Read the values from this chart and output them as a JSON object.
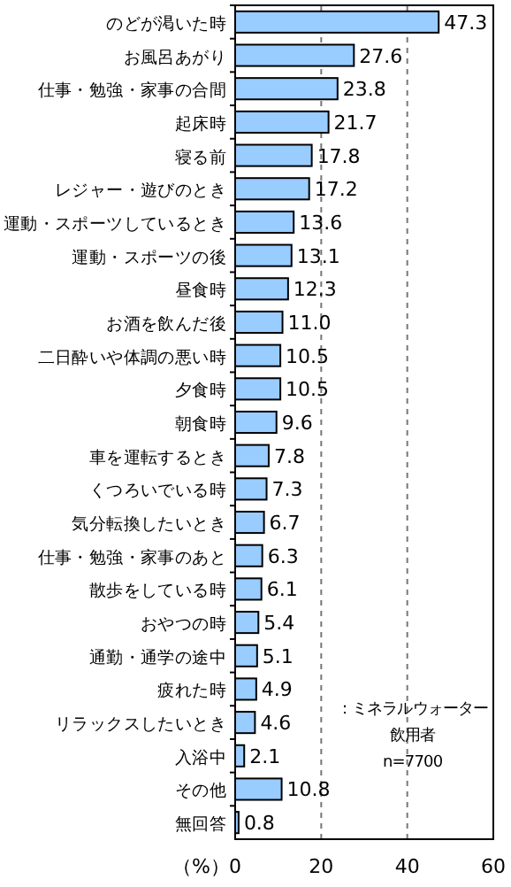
{
  "chart_data": {
    "type": "bar",
    "orientation": "horizontal",
    "xlabel": "（%）",
    "categories": [
      "のどが渇いた時",
      "お風呂あがり",
      "仕事・勉強・家事の合間",
      "起床時",
      "寝る前",
      "レジャー・遊びのとき",
      "運動・スポーツしているとき",
      "運動・スポーツの後",
      "昼食時",
      "お酒を飲んだ後",
      "二日酔いや体調の悪い時",
      "夕食時",
      "朝食時",
      "車を運転するとき",
      "くつろいでいる時",
      "気分転換したいとき",
      "仕事・勉強・家事のあと",
      "散歩をしている時",
      "おやつの時",
      "通勤・通学の途中",
      "疲れた時",
      "リラックスしたいとき",
      "入浴中",
      "その他",
      "無回答"
    ],
    "values": [
      47.3,
      27.6,
      23.8,
      21.7,
      17.8,
      17.2,
      13.6,
      13.1,
      12.3,
      11.0,
      10.5,
      10.5,
      9.6,
      7.8,
      7.3,
      6.7,
      6.3,
      6.1,
      5.4,
      5.1,
      4.9,
      4.6,
      2.1,
      10.8,
      0.8
    ],
    "value_labels": [
      "47.3",
      "27.6",
      "23.8",
      "21.7",
      "17.8",
      "17.2",
      "13.6",
      "13.1",
      "12.3",
      "11.0",
      "10.5",
      "10.5",
      "9.6",
      "7.8",
      "7.3",
      "6.7",
      "6.3",
      "6.1",
      "5.4",
      "5.1",
      "4.9",
      "4.6",
      "2.1",
      "10.8",
      "0.8"
    ],
    "color": "#99ccff",
    "xlim": [
      0,
      60
    ],
    "xticks": [
      0,
      20,
      40,
      60
    ],
    "grid": "x",
    "annotations": [
      "：ミネラルウォーター",
      "飲用者",
      "n=7700"
    ]
  }
}
